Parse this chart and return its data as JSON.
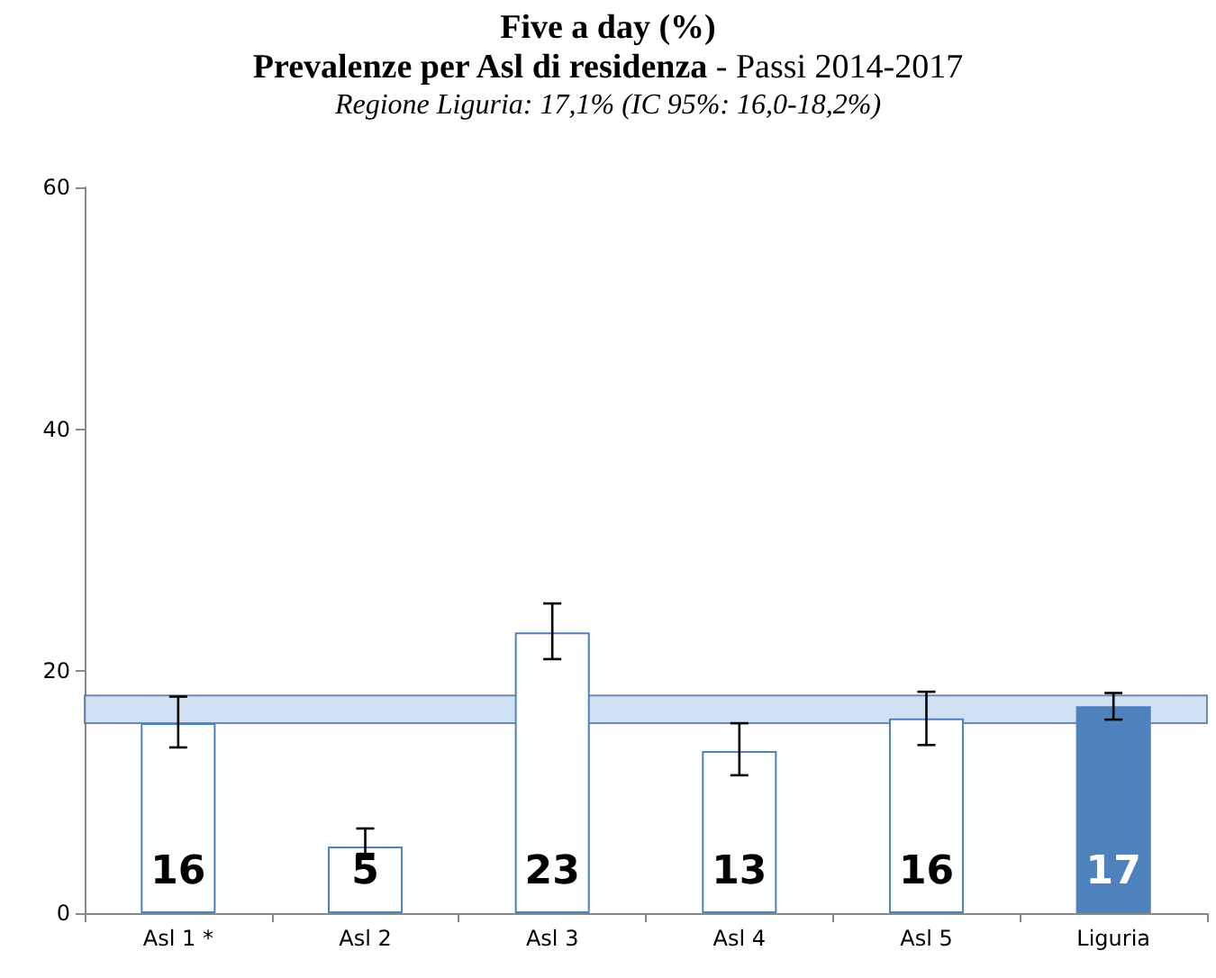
{
  "chart_data": {
    "type": "bar",
    "title": "Five a day (%)",
    "subtitle": "Prevalenze per Asl di residenza - Passi 2014-2017",
    "annotations": [
      "Regione Liguria: 17,1% (IC 95%: 16,0-18,2%)"
    ],
    "categories": [
      "Asl 1 *",
      "Asl 2",
      "Asl 3",
      "Asl 4",
      "Asl 5",
      "Liguria"
    ],
    "values": [
      15.7,
      5.5,
      23.2,
      13.4,
      16.1,
      17.1
    ],
    "value_labels": [
      "16",
      "5",
      "23",
      "13",
      "16",
      "17"
    ],
    "colors": [
      "#ffffff",
      "#ffffff",
      "#ffffff",
      "#ffffff",
      "#ffffff",
      "#4f81bd"
    ],
    "errors": [
      [
        13.7,
        17.9
      ],
      [
        4.9,
        7.0
      ],
      [
        21.0,
        25.6
      ],
      [
        11.4,
        15.7
      ],
      [
        13.9,
        18.3
      ],
      [
        16.0,
        18.2
      ]
    ],
    "bands": [
      {
        "axis": "y",
        "from": 15.7,
        "to": 18.0,
        "color": "#c6d9f1"
      }
    ],
    "ylim": [
      0,
      60
    ],
    "yticks": [
      0,
      20,
      40,
      60
    ],
    "grid": false
  }
}
